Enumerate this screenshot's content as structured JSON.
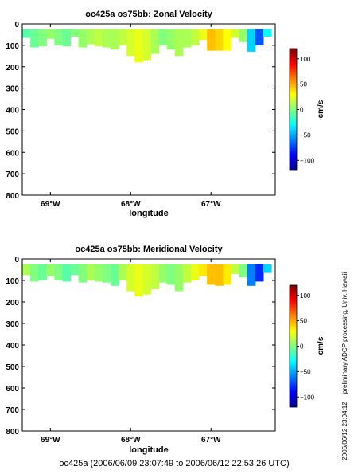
{
  "chart_data": [
    {
      "type": "heatmap",
      "title": "oc425a os75bb: Zonal Velocity",
      "xlabel": "longitude",
      "ylabel": "",
      "x_range": [
        -69.35,
        -66.2
      ],
      "ylim": [
        800,
        0
      ],
      "x_ticks": [
        -69,
        -68,
        -67
      ],
      "x_tick_labels": [
        "69°W",
        "68°W",
        "67°W"
      ],
      "y_ticks": [
        0,
        100,
        200,
        300,
        400,
        500,
        600,
        700,
        800
      ],
      "y_tick_labels": [
        "0",
        "100",
        "200",
        "300",
        "400",
        "500",
        "600",
        "700",
        "800"
      ],
      "data_depth_top": 25,
      "x": [
        -69.3,
        -69.2,
        -69.1,
        -69.0,
        -68.9,
        -68.8,
        -68.7,
        -68.6,
        -68.5,
        -68.4,
        -68.3,
        -68.2,
        -68.1,
        -68.0,
        -67.9,
        -67.8,
        -67.7,
        -67.6,
        -67.5,
        -67.4,
        -67.3,
        -67.2,
        -67.1,
        -67.0,
        -66.9,
        -66.8,
        -66.7,
        -66.6,
        -66.5,
        -66.4,
        -66.3
      ],
      "data_depth_bottom": [
        65,
        110,
        105,
        70,
        100,
        105,
        60,
        110,
        95,
        105,
        110,
        120,
        100,
        150,
        180,
        170,
        140,
        100,
        120,
        150,
        110,
        100,
        75,
        125,
        125,
        125,
        65,
        85,
        130,
        100,
        60
      ],
      "values": [
        -10,
        -5,
        0,
        5,
        0,
        -5,
        0,
        5,
        10,
        15,
        10,
        10,
        15,
        20,
        25,
        20,
        10,
        0,
        5,
        10,
        10,
        15,
        25,
        45,
        40,
        30,
        20,
        5,
        -40,
        -70,
        -30
      ],
      "colorbar": {
        "label": "cm/s",
        "range": [
          -120,
          120
        ],
        "ticks": [
          100,
          50,
          0,
          -50,
          -100
        ],
        "tick_labels": [
          "100",
          "50",
          "0",
          "−50",
          "−100"
        ]
      }
    },
    {
      "type": "heatmap",
      "title": "oc425a os75bb: Meridional Velocity",
      "xlabel": "longitude",
      "ylabel": "",
      "x_range": [
        -69.35,
        -66.2
      ],
      "ylim": [
        800,
        0
      ],
      "x_ticks": [
        -69,
        -68,
        -67
      ],
      "x_tick_labels": [
        "69°W",
        "68°W",
        "67°W"
      ],
      "y_ticks": [
        0,
        100,
        200,
        300,
        400,
        500,
        600,
        700,
        800
      ],
      "y_tick_labels": [
        "0",
        "100",
        "200",
        "300",
        "400",
        "500",
        "600",
        "700",
        "800"
      ],
      "data_depth_top": 25,
      "x": [
        -69.3,
        -69.2,
        -69.1,
        -69.0,
        -68.9,
        -68.8,
        -68.7,
        -68.6,
        -68.5,
        -68.4,
        -68.3,
        -68.2,
        -68.1,
        -68.0,
        -67.9,
        -67.8,
        -67.7,
        -67.6,
        -67.5,
        -67.4,
        -67.3,
        -67.2,
        -67.1,
        -67.0,
        -66.9,
        -66.8,
        -66.7,
        -66.6,
        -66.5,
        -66.4,
        -66.3
      ],
      "data_depth_bottom": [
        75,
        105,
        100,
        80,
        100,
        105,
        75,
        110,
        100,
        105,
        110,
        125,
        100,
        150,
        175,
        165,
        140,
        110,
        120,
        150,
        110,
        100,
        80,
        120,
        125,
        120,
        70,
        85,
        125,
        105,
        65
      ],
      "values": [
        10,
        0,
        -5,
        5,
        0,
        -10,
        -5,
        0,
        10,
        5,
        0,
        -5,
        10,
        20,
        25,
        20,
        15,
        5,
        0,
        5,
        15,
        25,
        35,
        45,
        45,
        35,
        15,
        0,
        -60,
        -80,
        -40
      ],
      "colorbar": {
        "label": "cm/s",
        "range": [
          -120,
          120
        ],
        "ticks": [
          100,
          50,
          0,
          -50,
          -100
        ],
        "tick_labels": [
          "100",
          "50",
          "0",
          "−50",
          "−100"
        ]
      }
    }
  ],
  "side_note": "preliminary ADCP processing,   Univ. Hawaii",
  "side_date": "2006/06/12 23:04:12",
  "footer": "oc425a (2006/06/09 23:07:49 to 2006/06/12 22:53:26 UTC)"
}
